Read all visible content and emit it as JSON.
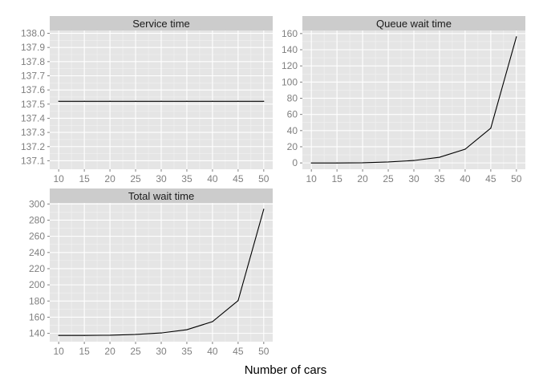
{
  "figure": {
    "xlabel": "Number of cars"
  },
  "chart_data": [
    {
      "type": "line",
      "title": "Service time",
      "x": [
        10,
        15,
        20,
        25,
        30,
        35,
        40,
        45,
        50
      ],
      "series": [
        {
          "values": [
            137.52,
            137.52,
            137.52,
            137.52,
            137.52,
            137.52,
            137.52,
            137.52,
            137.52
          ]
        }
      ],
      "xticks": [
        10,
        15,
        20,
        25,
        30,
        35,
        40,
        45,
        50
      ],
      "yticks": [
        137.1,
        137.2,
        137.3,
        137.4,
        137.5,
        137.6,
        137.7,
        137.8,
        137.9,
        138.0
      ],
      "ytick_labels": [
        "137.1",
        "137.2",
        "137.3",
        "137.4",
        "137.5",
        "137.6",
        "137.7",
        "137.8",
        "137.9",
        "138.0"
      ],
      "xlim": [
        8.25,
        51.75
      ],
      "ylim": [
        137.04,
        138.02
      ],
      "grid": true
    },
    {
      "type": "line",
      "title": "Queue wait time",
      "x": [
        10,
        15,
        20,
        25,
        30,
        35,
        40,
        45,
        50
      ],
      "series": [
        {
          "values": [
            0,
            0,
            0.2,
            1.2,
            3,
            7,
            17,
            43,
            156
          ]
        }
      ],
      "xticks": [
        10,
        15,
        20,
        25,
        30,
        35,
        40,
        45,
        50
      ],
      "yticks": [
        0,
        20,
        40,
        60,
        80,
        100,
        120,
        140,
        160
      ],
      "ytick_labels": [
        "0",
        "20",
        "40",
        "60",
        "80",
        "100",
        "120",
        "140",
        "160"
      ],
      "xlim": [
        8.25,
        51.75
      ],
      "ylim": [
        -7.8,
        163.8
      ],
      "grid": true
    },
    {
      "type": "line",
      "title": "Total wait time",
      "x": [
        10,
        15,
        20,
        25,
        30,
        35,
        40,
        45,
        50
      ],
      "series": [
        {
          "values": [
            137.5,
            137.5,
            137.7,
            138.7,
            140.5,
            144.5,
            154.5,
            180.5,
            293.5
          ]
        }
      ],
      "xticks": [
        10,
        15,
        20,
        25,
        30,
        35,
        40,
        45,
        50
      ],
      "yticks": [
        140,
        160,
        180,
        200,
        220,
        240,
        260,
        280,
        300
      ],
      "ytick_labels": [
        "140",
        "160",
        "180",
        "200",
        "220",
        "240",
        "260",
        "280",
        "300"
      ],
      "xlim": [
        8.25,
        51.75
      ],
      "ylim": [
        129.7,
        301.3
      ],
      "grid": true
    }
  ]
}
